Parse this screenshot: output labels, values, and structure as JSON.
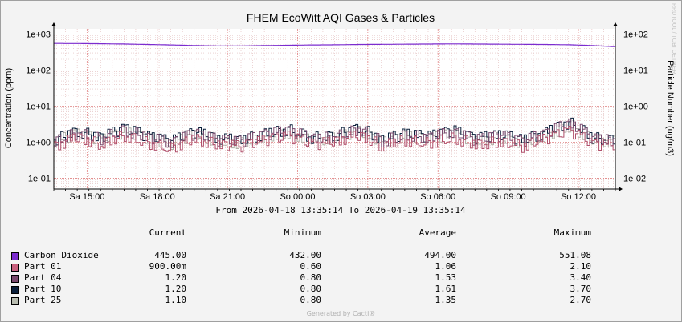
{
  "chart_data": {
    "type": "line",
    "title": "FHEM EcoWitt AQI Gases & Particles",
    "ylabel": "Concentration (ppm)",
    "ylabel_right": "Particle Number (ug/m3)",
    "watermark": "RRDTOOL / TOBI OETIKER",
    "y_scale": "log",
    "ylim": [
      0.05,
      1400
    ],
    "y_ticks": [
      "1e+03",
      "1e+02",
      "1e+01",
      "1e+00",
      "1e-01"
    ],
    "y_ticks_right": [
      "1e+02",
      "1e+01",
      "1e+00",
      "1e-01",
      "1e-02"
    ],
    "x_ticks": [
      "Sa 15:00",
      "Sa 18:00",
      "Sa 21:00",
      "So 00:00",
      "So 03:00",
      "So 06:00",
      "So 09:00",
      "So 12:00"
    ],
    "x_tick_hours": [
      1.42,
      4.42,
      7.42,
      10.42,
      13.42,
      16.42,
      19.42,
      22.42
    ],
    "x_range_hours": [
      0,
      24
    ],
    "time_range": "From 2026-04-18 13:35:14 To 2026-04-19 13:35:14",
    "series": [
      {
        "name": "Carbon Dioxide",
        "color": "#7c2ccf",
        "x": [
          0,
          1,
          2,
          3,
          4,
          5,
          6,
          7,
          8,
          9,
          10,
          11,
          12,
          13,
          14,
          15,
          16,
          17,
          18,
          19,
          20,
          21,
          22,
          23,
          24
        ],
        "values": [
          551,
          548,
          540,
          530,
          515,
          500,
          480,
          470,
          470,
          480,
          490,
          500,
          505,
          515,
          520,
          525,
          530,
          535,
          530,
          525,
          520,
          515,
          505,
          480,
          445
        ]
      },
      {
        "name": "Part 01",
        "color": "#b0506c",
        "x": [
          0,
          1,
          2,
          3,
          4,
          5,
          6,
          7,
          8,
          9,
          10,
          11,
          12,
          13,
          14,
          15,
          16,
          17,
          18,
          19,
          20,
          21,
          22,
          23,
          24
        ],
        "values": [
          0.8,
          1.4,
          0.9,
          1.6,
          1.0,
          0.7,
          1.3,
          0.9,
          0.8,
          1.2,
          1.5,
          0.9,
          1.1,
          1.6,
          0.8,
          1.2,
          1.0,
          1.4,
          0.9,
          1.1,
          0.8,
          1.3,
          2.1,
          0.9,
          0.9
        ]
      },
      {
        "name": "Part 04",
        "color": "#7b4a6e",
        "x": [
          0,
          1,
          2,
          3,
          4,
          5,
          6,
          7,
          8,
          9,
          10,
          11,
          12,
          13,
          14,
          15,
          16,
          17,
          18,
          19,
          20,
          21,
          22,
          23,
          24
        ],
        "values": [
          1.1,
          1.9,
          1.3,
          2.3,
          1.4,
          1.0,
          1.8,
          1.2,
          1.1,
          1.7,
          2.2,
          1.3,
          1.5,
          2.4,
          1.1,
          1.7,
          1.4,
          2.0,
          1.2,
          1.6,
          1.1,
          1.8,
          3.4,
          1.3,
          1.2
        ]
      },
      {
        "name": "Part 10",
        "color": "#0a1f3a",
        "x": [
          0,
          1,
          2,
          3,
          4,
          5,
          6,
          7,
          8,
          9,
          10,
          11,
          12,
          13,
          14,
          15,
          16,
          17,
          18,
          19,
          20,
          21,
          22,
          23,
          24
        ],
        "values": [
          1.2,
          2.1,
          1.4,
          2.5,
          1.5,
          1.1,
          2.0,
          1.3,
          1.2,
          1.8,
          2.4,
          1.4,
          1.6,
          2.6,
          1.2,
          1.8,
          1.5,
          2.2,
          1.3,
          1.7,
          1.2,
          1.9,
          3.7,
          1.4,
          1.2
        ]
      },
      {
        "name": "Part 25",
        "color": "#b0b0a8",
        "x": [
          0,
          1,
          2,
          3,
          4,
          5,
          6,
          7,
          8,
          9,
          10,
          11,
          12,
          13,
          14,
          15,
          16,
          17,
          18,
          19,
          20,
          21,
          22,
          23,
          24
        ],
        "values": [
          1.1,
          1.8,
          1.2,
          2.0,
          1.3,
          0.9,
          1.7,
          1.1,
          1.0,
          1.5,
          1.9,
          1.2,
          1.4,
          2.1,
          1.0,
          1.5,
          1.3,
          1.8,
          1.1,
          1.4,
          1.0,
          1.6,
          2.7,
          1.2,
          1.1
        ]
      }
    ]
  },
  "legend": {
    "headers": {
      "current": "Current",
      "minimum": "Minimum",
      "average": "Average",
      "maximum": "Maximum"
    },
    "rows": [
      {
        "name": "Carbon Dioxide",
        "color": "#7c2ccf",
        "current": "445.00",
        "minimum": "432.00",
        "average": "494.00",
        "maximum": "551.08"
      },
      {
        "name": "Part 01",
        "color": "#c8607e",
        "current": "900.00m",
        "minimum": "0.60",
        "average": "1.06",
        "maximum": "2.10"
      },
      {
        "name": "Part 04",
        "color": "#7b4a6e",
        "current": "1.20",
        "minimum": "0.80",
        "average": "1.53",
        "maximum": "3.40"
      },
      {
        "name": "Part 10",
        "color": "#0a1f3a",
        "current": "1.20",
        "minimum": "0.80",
        "average": "1.61",
        "maximum": "3.70"
      },
      {
        "name": "Part 25",
        "color": "#b8bcb0",
        "current": "1.10",
        "minimum": "0.80",
        "average": "1.35",
        "maximum": "2.70"
      }
    ]
  },
  "footer": "Generated by Cacti®"
}
